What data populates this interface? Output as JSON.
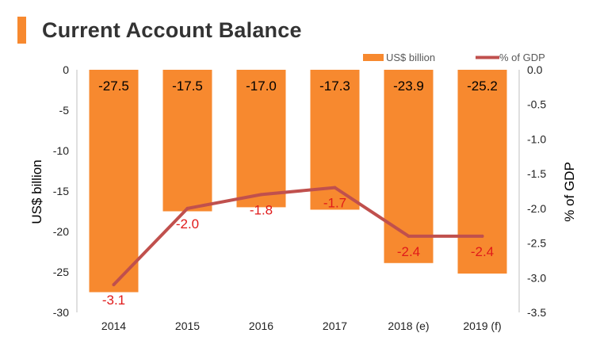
{
  "header": {
    "title": "Current Account Balance"
  },
  "colors": {
    "bar": "#F7892F",
    "line": "#C0504D",
    "line_label": "#E01A1A",
    "title_bar": "#F7892F"
  },
  "chart_data": {
    "type": "bar",
    "categories": [
      "2014",
      "2015",
      "2016",
      "2017",
      "2018 (e)",
      "2019 (f)"
    ],
    "series": [
      {
        "name": "US$ billion",
        "type": "bar",
        "axis": "left",
        "values": [
          -27.5,
          -17.5,
          -17.0,
          -17.3,
          -23.9,
          -25.2
        ],
        "labels": [
          "-27.5",
          "-17.5",
          "-17.0",
          "-17.3",
          "-23.9",
          "-25.2"
        ]
      },
      {
        "name": "% of GDP",
        "type": "line",
        "axis": "right",
        "values": [
          -3.1,
          -2.0,
          -1.8,
          -1.7,
          -2.4,
          -2.4
        ],
        "labels": [
          "-3.1",
          "-2.0",
          "-1.8",
          "-1.7",
          "-2.4",
          "-2.4"
        ]
      }
    ],
    "ylabel": "US$ billion",
    "ylabel_right": "% of GDP",
    "ylim": [
      -30,
      0
    ],
    "ylim_right": [
      -3.5,
      0
    ],
    "yticks": [
      0,
      -5,
      -10,
      -15,
      -20,
      -25,
      -30
    ],
    "yticks_labels": [
      "0",
      "-5",
      "-10",
      "-15",
      "-20",
      "-25",
      "-30"
    ],
    "yticks_right": [
      0,
      -0.5,
      -1,
      -1.5,
      -2,
      -2.5,
      -3,
      -3.5
    ],
    "yticks_right_labels": [
      "0.0",
      "-0.5",
      "-1.0",
      "-1.5",
      "-2.0",
      "-2.5",
      "-3.0",
      "-3.5"
    ],
    "legend": "top-right",
    "grid": false
  }
}
